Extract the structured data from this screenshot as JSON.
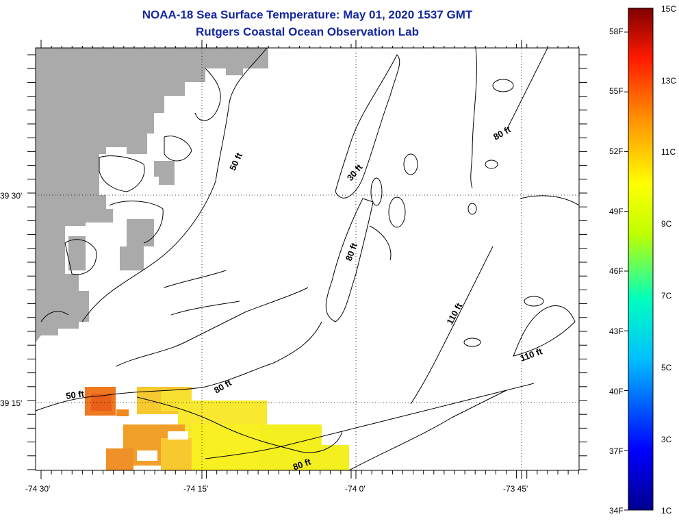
{
  "header": {
    "title": "NOAA-18 Sea Surface Temperature:  May 01, 2020 1537 GMT",
    "subtitle": "Rutgers Coastal Ocean Observation Lab"
  },
  "map": {
    "lon_labels": [
      "-74 30'",
      "-74 15'",
      "-74 0'",
      "-73 45'"
    ],
    "lat_labels": [
      "39 30'",
      "39 15'"
    ],
    "contour_labels": [
      "50 ft",
      "30 ft",
      "80 ft",
      "80 ft",
      "110 ft",
      "110 ft",
      "50 ft",
      "80 ft",
      "80 ft"
    ],
    "land_color": "#aaaaaa"
  },
  "colorbar": {
    "f_labels": [
      "58F",
      "55F",
      "52F",
      "49F",
      "46F",
      "43F",
      "40F",
      "37F",
      "34F"
    ],
    "c_labels": [
      "15C",
      "13C",
      "11C",
      "9C",
      "7C",
      "5C",
      "3C",
      "1C"
    ]
  }
}
